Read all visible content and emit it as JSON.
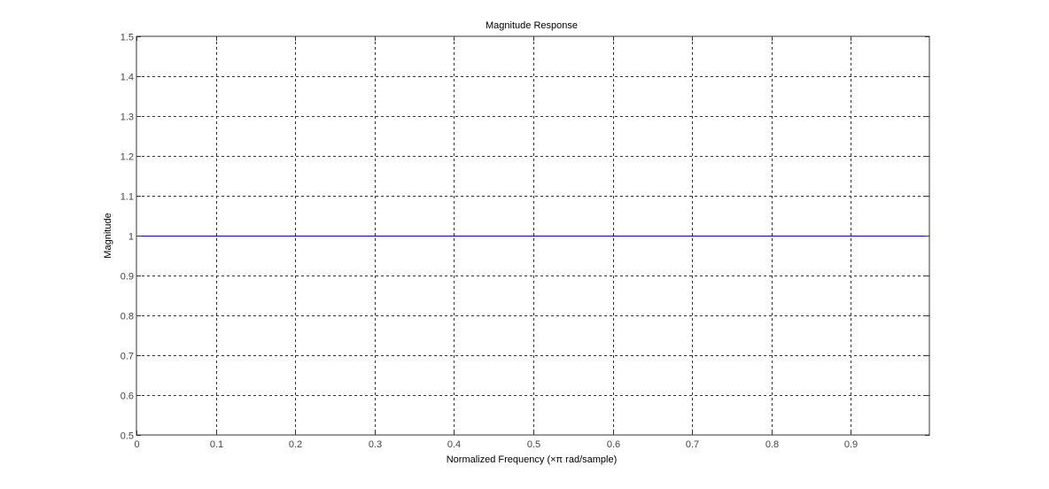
{
  "chart_data": {
    "type": "line",
    "title": "Magnitude Response",
    "xlabel": "Normalized Frequency (×π rad/sample)",
    "ylabel": "Magnitude",
    "xlim": [
      0,
      0.999
    ],
    "ylim": [
      0.5,
      1.5
    ],
    "xticks": [
      0,
      0.1,
      0.2,
      0.3,
      0.4,
      0.5,
      0.6,
      0.7,
      0.8,
      0.9
    ],
    "xtick_labels": [
      "0",
      "0.1",
      "0.2",
      "0.3",
      "0.4",
      "0.5",
      "0.6",
      "0.7",
      "0.8",
      "0.9"
    ],
    "yticks": [
      0.5,
      0.6,
      0.7,
      0.8,
      0.9,
      1,
      1.1,
      1.2,
      1.3,
      1.4,
      1.5
    ],
    "ytick_labels": [
      "0.5",
      "0.6",
      "0.7",
      "0.8",
      "0.9",
      "1",
      "1.1",
      "1.2",
      "1.3",
      "1.4",
      "1.5"
    ],
    "grid": true,
    "series": [
      {
        "x": [
          0,
          0.999
        ],
        "y": [
          1,
          1
        ],
        "color": "#0000cc"
      }
    ],
    "colors": {
      "grid": "#333333",
      "axes": "#333333",
      "tick_text": "#444444"
    }
  }
}
